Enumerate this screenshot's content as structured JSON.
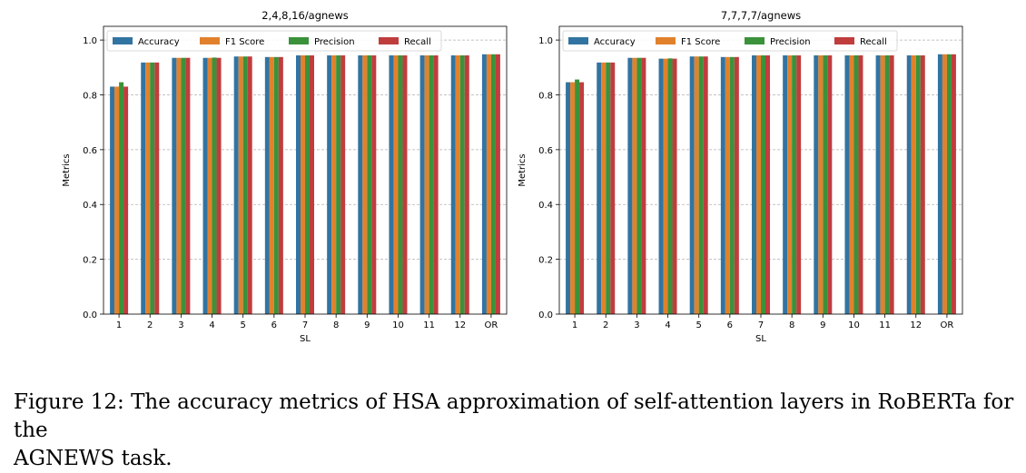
{
  "colors": {
    "Accuracy": "#3274a1",
    "F1 Score": "#e1812c",
    "Precision": "#3a923a",
    "Recall": "#c03d3e"
  },
  "chart_data": [
    {
      "type": "bar",
      "title": "2,4,8,16/agnews",
      "xlabel": "SL",
      "ylabel": "Metrics",
      "ylim": [
        0,
        1.05
      ],
      "yticks": [
        "0.0",
        "0.2",
        "0.4",
        "0.6",
        "0.8",
        "1.0"
      ],
      "grid": "y-dashed",
      "legend": "top, single row",
      "categories": [
        "1",
        "2",
        "3",
        "4",
        "5",
        "6",
        "7",
        "8",
        "9",
        "10",
        "11",
        "12",
        "OR"
      ],
      "series": [
        {
          "name": "Accuracy",
          "values": [
            0.83,
            0.918,
            0.935,
            0.935,
            0.94,
            0.938,
            0.944,
            0.944,
            0.944,
            0.944,
            0.944,
            0.944,
            0.948
          ]
        },
        {
          "name": "F1 Score",
          "values": [
            0.83,
            0.918,
            0.935,
            0.935,
            0.94,
            0.938,
            0.944,
            0.944,
            0.944,
            0.944,
            0.944,
            0.944,
            0.948
          ]
        },
        {
          "name": "Precision",
          "values": [
            0.846,
            0.918,
            0.935,
            0.936,
            0.94,
            0.938,
            0.944,
            0.944,
            0.944,
            0.944,
            0.944,
            0.944,
            0.948
          ]
        },
        {
          "name": "Recall",
          "values": [
            0.83,
            0.918,
            0.935,
            0.935,
            0.94,
            0.938,
            0.944,
            0.944,
            0.944,
            0.944,
            0.944,
            0.944,
            0.948
          ]
        }
      ]
    },
    {
      "type": "bar",
      "title": "7,7,7,7/agnews",
      "xlabel": "SL",
      "ylabel": "Metrics",
      "ylim": [
        0,
        1.05
      ],
      "yticks": [
        "0.0",
        "0.2",
        "0.4",
        "0.6",
        "0.8",
        "1.0"
      ],
      "grid": "y-dashed",
      "legend": "top, single row",
      "categories": [
        "1",
        "2",
        "3",
        "4",
        "5",
        "6",
        "7",
        "8",
        "9",
        "10",
        "11",
        "12",
        "OR"
      ],
      "series": [
        {
          "name": "Accuracy",
          "values": [
            0.846,
            0.918,
            0.935,
            0.932,
            0.94,
            0.938,
            0.944,
            0.944,
            0.944,
            0.944,
            0.944,
            0.944,
            0.948
          ]
        },
        {
          "name": "F1 Score",
          "values": [
            0.846,
            0.918,
            0.935,
            0.932,
            0.94,
            0.938,
            0.944,
            0.944,
            0.944,
            0.944,
            0.944,
            0.944,
            0.948
          ]
        },
        {
          "name": "Precision",
          "values": [
            0.856,
            0.918,
            0.935,
            0.933,
            0.94,
            0.938,
            0.944,
            0.944,
            0.944,
            0.944,
            0.944,
            0.944,
            0.948
          ]
        },
        {
          "name": "Recall",
          "values": [
            0.846,
            0.918,
            0.935,
            0.932,
            0.94,
            0.938,
            0.944,
            0.944,
            0.944,
            0.944,
            0.944,
            0.944,
            0.948
          ]
        }
      ]
    }
  ],
  "caption": "Figure 12: The accuracy metrics of HSA approximation of self-attention layers in RoBERTa for the\nAGNEWS task."
}
